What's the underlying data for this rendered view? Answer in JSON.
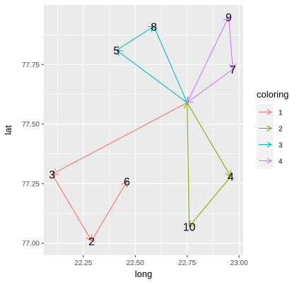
{
  "chart_data": {
    "type": "scatter",
    "title": "",
    "xlabel": "long",
    "ylabel": "lat",
    "xlim": [
      22.06,
      23.02
    ],
    "ylim": [
      76.95,
      78.0
    ],
    "x_ticks": [
      22.25,
      22.5,
      22.75,
      23.0
    ],
    "x_tick_labels": [
      "22.25",
      "22.50",
      "22.75",
      "23.00"
    ],
    "y_ticks": [
      77.0,
      77.25,
      77.5,
      77.75
    ],
    "y_tick_labels": [
      "77.00",
      "77.25",
      "77.50",
      "77.75"
    ],
    "grid": true,
    "legend": {
      "title": "coloring",
      "placement": "right",
      "items": [
        {
          "label": "1",
          "color": "#F8766D"
        },
        {
          "label": "2",
          "color": "#7CAE00"
        },
        {
          "label": "3",
          "color": "#00BFC4"
        },
        {
          "label": "4",
          "color": "#C77CFF"
        }
      ]
    },
    "points": [
      {
        "label": "2",
        "x": 22.29,
        "y": 77.01
      },
      {
        "label": "3",
        "x": 22.1,
        "y": 77.29
      },
      {
        "label": "4",
        "x": 22.96,
        "y": 77.28
      },
      {
        "label": "5",
        "x": 22.41,
        "y": 77.81
      },
      {
        "label": "6",
        "x": 22.46,
        "y": 77.26
      },
      {
        "label": "7",
        "x": 22.97,
        "y": 77.73
      },
      {
        "label": "8",
        "x": 22.59,
        "y": 77.91
      },
      {
        "label": "9",
        "x": 22.95,
        "y": 77.95
      },
      {
        "label": "10",
        "x": 22.76,
        "y": 77.07
      }
    ],
    "center": {
      "x": 22.75,
      "y": 77.59
    },
    "arrows": [
      {
        "group": "1",
        "from": [
          22.75,
          77.59
        ],
        "to": [
          22.1,
          77.29
        ]
      },
      {
        "group": "1",
        "from": [
          22.1,
          77.29
        ],
        "to": [
          22.29,
          77.01
        ]
      },
      {
        "group": "1",
        "from": [
          22.29,
          77.01
        ],
        "to": [
          22.46,
          77.26
        ]
      },
      {
        "group": "2",
        "from": [
          22.75,
          77.59
        ],
        "to": [
          22.96,
          77.28
        ]
      },
      {
        "group": "2",
        "from": [
          22.96,
          77.28
        ],
        "to": [
          22.76,
          77.07
        ]
      },
      {
        "group": "2",
        "from": [
          22.76,
          77.07
        ],
        "to": [
          22.75,
          77.59
        ]
      },
      {
        "group": "3",
        "from": [
          22.75,
          77.59
        ],
        "to": [
          22.41,
          77.81
        ]
      },
      {
        "group": "3",
        "from": [
          22.41,
          77.81
        ],
        "to": [
          22.59,
          77.91
        ]
      },
      {
        "group": "3",
        "from": [
          22.59,
          77.91
        ],
        "to": [
          22.75,
          77.59
        ]
      },
      {
        "group": "4",
        "from": [
          22.75,
          77.59
        ],
        "to": [
          22.95,
          77.95
        ]
      },
      {
        "group": "4",
        "from": [
          22.95,
          77.95
        ],
        "to": [
          22.97,
          77.73
        ]
      },
      {
        "group": "4",
        "from": [
          22.97,
          77.73
        ],
        "to": [
          22.75,
          77.59
        ]
      }
    ]
  }
}
